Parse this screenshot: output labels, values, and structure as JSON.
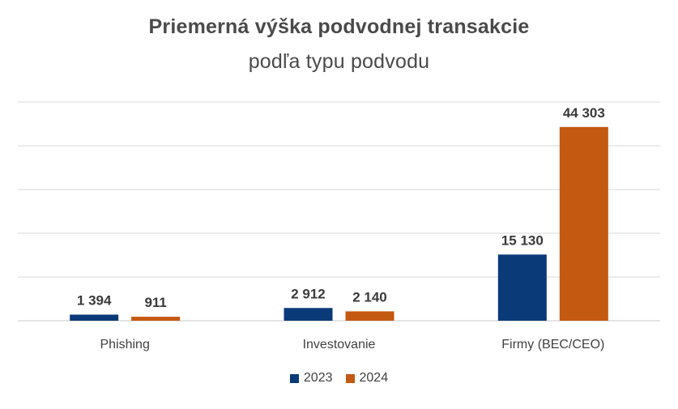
{
  "chart_data": {
    "type": "bar",
    "title": "Priemerná výška podvodnej transakcie",
    "subtitle": "podľa typu podvodu",
    "categories": [
      "Phishing",
      "Investovanie",
      "Firmy (BEC/CEO)"
    ],
    "series": [
      {
        "name": "2023",
        "color": "#0b3a78",
        "values": [
          1394,
          2912,
          15130
        ],
        "labels": [
          "1 394",
          "2 912",
          "15 130"
        ]
      },
      {
        "name": "2024",
        "color": "#c45911",
        "values": [
          911,
          2140,
          44303
        ],
        "labels": [
          "911",
          "2 140",
          "44 303"
        ]
      }
    ],
    "ylim": [
      0,
      50000
    ],
    "gridlines": true,
    "y_tick_labels_visible": false,
    "legend_position": "bottom"
  }
}
